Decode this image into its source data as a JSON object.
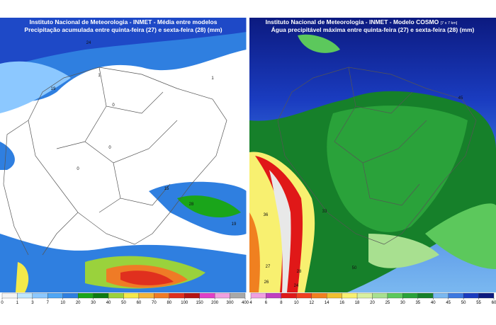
{
  "panels": [
    {
      "title": "Instituto Nacional de Meteorologia - INMET - Média entre modelos",
      "subtitle": "Precipitação acumulada entre quinta-feira (27) e sexta-feira (28) (mm)",
      "colorbar": {
        "ticks": [
          0,
          1,
          3,
          7,
          10,
          20,
          30,
          40,
          50,
          60,
          70,
          80,
          100,
          150,
          200,
          300,
          400
        ],
        "colors": [
          "#f4f4f4",
          "#bfe6ff",
          "#8cc8ff",
          "#4fa6f5",
          "#2f7fe0",
          "#1aa51a",
          "#0d7a12",
          "#9ad23c",
          "#f4e94a",
          "#f4b43a",
          "#ef7b26",
          "#e0301e",
          "#b41414",
          "#e040c8",
          "#f0a0e0",
          "#a8a8a8"
        ]
      },
      "map_labels": [
        "1",
        "0",
        "0",
        "19",
        "15",
        "19",
        "28",
        "24",
        "1",
        "0"
      ]
    },
    {
      "title": "Instituto Nacional de Meteorologia - INMET - Modelo COSMO",
      "title_note": "[7 x 7 km]",
      "subtitle": "Água precipitável máxima entre quinta-feira (27) e sexta-feira (28) (mm)",
      "colorbar": {
        "ticks": [
          4,
          6,
          8,
          10,
          12,
          14,
          16,
          18,
          20,
          25,
          30,
          35,
          40,
          45,
          50,
          55,
          60
        ],
        "colors": [
          "#f0a0e0",
          "#c040c0",
          "#e01818",
          "#f04020",
          "#f08020",
          "#f0c030",
          "#f8f070",
          "#d8f0a0",
          "#a8e090",
          "#5cc85c",
          "#2aa23a",
          "#16802a",
          "#7ab8f0",
          "#3c78e0",
          "#1a3cc0",
          "#0c1a80"
        ]
      },
      "map_labels": [
        "45",
        "36",
        "33",
        "28",
        "27",
        "24",
        "50",
        "26"
      ]
    }
  ]
}
